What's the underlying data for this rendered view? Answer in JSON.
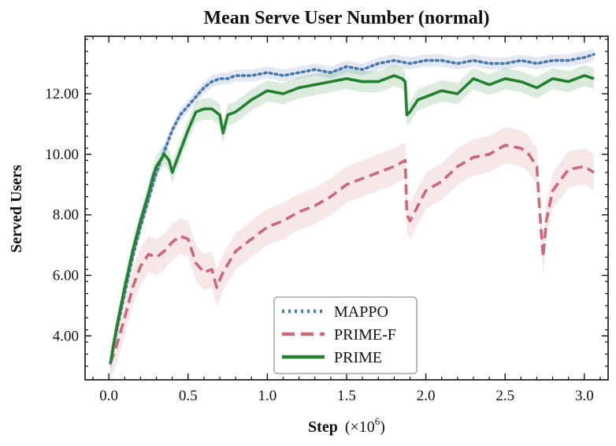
{
  "chart_data": {
    "type": "line",
    "title": "Mean Serve User Number (normal)",
    "xlabel": "Step",
    "xlabel_unit": "(×10",
    "xlabel_exp": "6",
    "xlabel_close": ")",
    "ylabel": "Served Users",
    "xlim": [
      -0.15,
      3.15
    ],
    "ylim": [
      2.55,
      13.9
    ],
    "xticks": [
      0.0,
      0.5,
      1.0,
      1.5,
      2.0,
      2.5,
      3.0
    ],
    "xtick_labels": [
      "0.0",
      "0.5",
      "1.0",
      "1.5",
      "2.0",
      "2.5",
      "3.0"
    ],
    "yticks": [
      4,
      6,
      8,
      10,
      12
    ],
    "ytick_labels": [
      "4.00",
      "6.00",
      "8.00",
      "10.00",
      "12.00"
    ],
    "grid": false,
    "legend_position": "bottom-center",
    "series": [
      {
        "name": "MAPPO",
        "color": "#4a77ad",
        "dash": "dotted",
        "x": [
          0.01,
          0.05,
          0.1,
          0.15,
          0.2,
          0.25,
          0.3,
          0.35,
          0.4,
          0.45,
          0.5,
          0.55,
          0.6,
          0.65,
          0.7,
          0.75,
          0.8,
          0.9,
          1.0,
          1.1,
          1.2,
          1.3,
          1.4,
          1.5,
          1.6,
          1.7,
          1.8,
          1.9,
          2.0,
          2.1,
          2.2,
          2.3,
          2.4,
          2.5,
          2.6,
          2.7,
          2.8,
          2.9,
          3.0,
          3.06
        ],
        "y": [
          3.1,
          4.2,
          5.4,
          6.6,
          7.6,
          8.5,
          9.4,
          10.1,
          10.8,
          11.3,
          11.6,
          11.9,
          12.2,
          12.4,
          12.5,
          12.5,
          12.6,
          12.6,
          12.7,
          12.6,
          12.7,
          12.8,
          12.7,
          12.9,
          12.8,
          13.0,
          13.1,
          13.0,
          13.1,
          13.1,
          13.0,
          13.1,
          13.0,
          13.0,
          13.1,
          13.0,
          13.1,
          13.1,
          13.2,
          13.3
        ],
        "band": 0.2
      },
      {
        "name": "PRIME-F",
        "color": "#cd6877",
        "dash": "dashed",
        "x": [
          0.01,
          0.05,
          0.1,
          0.15,
          0.2,
          0.25,
          0.3,
          0.35,
          0.4,
          0.45,
          0.5,
          0.55,
          0.6,
          0.65,
          0.68,
          0.72,
          0.8,
          0.9,
          1.0,
          1.1,
          1.2,
          1.3,
          1.4,
          1.5,
          1.6,
          1.7,
          1.8,
          1.87,
          1.88,
          1.9,
          1.95,
          2.0,
          2.1,
          2.2,
          2.3,
          2.4,
          2.5,
          2.6,
          2.65,
          2.7,
          2.72,
          2.74,
          2.76,
          2.8,
          2.9,
          3.0,
          3.06
        ],
        "y": [
          3.1,
          3.7,
          4.6,
          5.6,
          6.3,
          6.7,
          6.6,
          6.8,
          7.1,
          7.3,
          7.2,
          6.4,
          6.1,
          6.2,
          5.6,
          6.1,
          6.8,
          7.2,
          7.6,
          7.8,
          8.1,
          8.3,
          8.6,
          9.0,
          9.2,
          9.4,
          9.6,
          9.8,
          8.0,
          7.8,
          8.3,
          8.8,
          9.1,
          9.6,
          9.9,
          10.0,
          10.3,
          10.2,
          10.0,
          9.6,
          8.0,
          6.6,
          7.8,
          8.8,
          9.5,
          9.6,
          9.4
        ],
        "band": 0.6
      },
      {
        "name": "PRIME",
        "color": "#22812f",
        "dash": "solid",
        "x": [
          0.01,
          0.05,
          0.1,
          0.15,
          0.2,
          0.25,
          0.28,
          0.3,
          0.35,
          0.38,
          0.4,
          0.45,
          0.5,
          0.55,
          0.6,
          0.65,
          0.7,
          0.72,
          0.75,
          0.8,
          0.9,
          1.0,
          1.1,
          1.2,
          1.3,
          1.4,
          1.5,
          1.6,
          1.7,
          1.8,
          1.85,
          1.87,
          1.88,
          1.9,
          1.95,
          2.0,
          2.1,
          2.2,
          2.3,
          2.4,
          2.5,
          2.6,
          2.7,
          2.8,
          2.9,
          3.0,
          3.06
        ],
        "y": [
          3.1,
          4.3,
          5.6,
          6.8,
          7.8,
          8.7,
          9.3,
          9.6,
          10.0,
          9.8,
          9.4,
          10.1,
          10.8,
          11.4,
          11.5,
          11.5,
          11.3,
          10.7,
          11.3,
          11.4,
          11.8,
          12.1,
          12.0,
          12.2,
          12.3,
          12.4,
          12.5,
          12.4,
          12.4,
          12.6,
          12.5,
          12.4,
          11.3,
          11.4,
          11.8,
          11.9,
          12.1,
          12.0,
          12.5,
          12.3,
          12.5,
          12.4,
          12.2,
          12.5,
          12.4,
          12.6,
          12.5
        ],
        "band": 0.35
      }
    ]
  }
}
